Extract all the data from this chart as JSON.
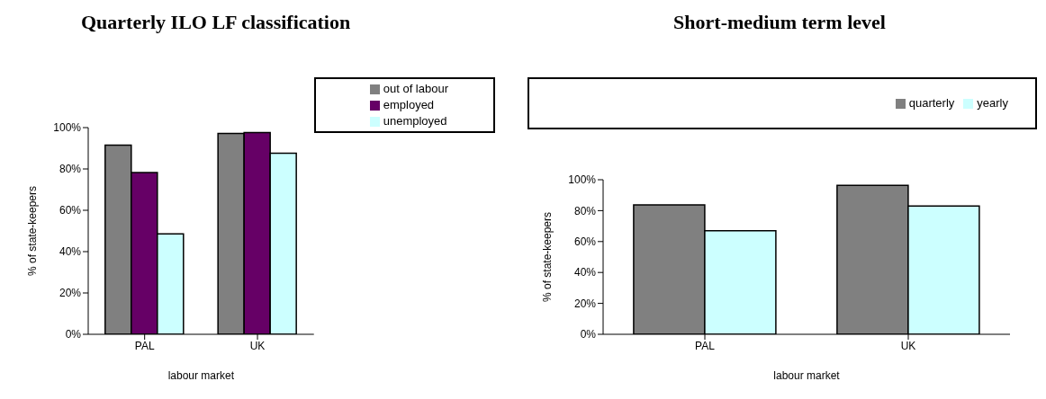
{
  "chart_data": [
    {
      "type": "bar",
      "title": "Quarterly ILO LF classification",
      "xlabel": "labour market",
      "ylabel": "% of state-keepers",
      "categories": [
        "PAL",
        "UK"
      ],
      "series": [
        {
          "name": "out of labour",
          "color": "#808080",
          "values": [
            91.5,
            97.2
          ]
        },
        {
          "name": "employed",
          "color": "#660066",
          "values": [
            78.3,
            97.6
          ]
        },
        {
          "name": "unemployed",
          "color": "#ccffff",
          "values": [
            48.6,
            87.6
          ]
        }
      ],
      "ylim": [
        0,
        100
      ],
      "yticks": [
        {
          "value": 0,
          "label": "0%"
        },
        {
          "value": 20,
          "label": "20%"
        },
        {
          "value": 40,
          "label": "40%"
        },
        {
          "value": 60,
          "label": "60%"
        },
        {
          "value": 80,
          "label": "80%"
        },
        {
          "value": 100,
          "label": "100%"
        }
      ],
      "grid": false,
      "legend": "top right"
    },
    {
      "type": "bar",
      "title": "Short-medium term level",
      "xlabel": "labour market",
      "ylabel": "% of state-keepers",
      "categories": [
        "PAL",
        "UK"
      ],
      "series": [
        {
          "name": "quarterly",
          "color": "#808080",
          "values": [
            83.7,
            96.3
          ]
        },
        {
          "name": "yearly",
          "color": "#ccffff",
          "values": [
            67,
            83
          ]
        }
      ],
      "ylim": [
        0,
        100
      ],
      "yticks": [
        {
          "value": 0,
          "label": "0%"
        },
        {
          "value": 20,
          "label": "20%"
        },
        {
          "value": 40,
          "label": "40%"
        },
        {
          "value": 60,
          "label": "60%"
        },
        {
          "value": 80,
          "label": "80%"
        },
        {
          "value": 100,
          "label": "100%"
        }
      ],
      "grid": false,
      "legend": "top right"
    }
  ]
}
